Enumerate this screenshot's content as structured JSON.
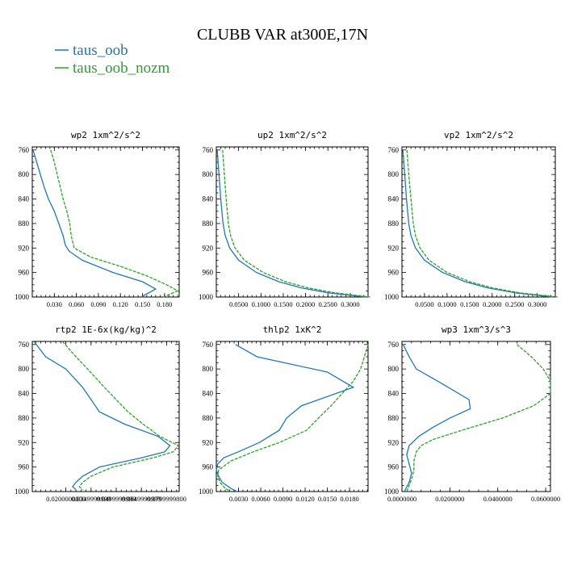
{
  "title": "CLUBB VAR at300E,17N",
  "legend": [
    {
      "name": "taus_oob",
      "color": "#1f77b4"
    },
    {
      "name": "taus_oob_nozm",
      "color": "#2ca02c"
    }
  ],
  "chart_data": [
    {
      "type": "line",
      "title": "wp2  1xm^2/s^2",
      "xlim": [
        0.0,
        0.2
      ],
      "ylim": [
        1000,
        755
      ],
      "xticks": [
        0.03,
        0.06,
        0.09,
        0.12,
        0.15,
        0.18
      ],
      "xticklabels": [
        "0.030",
        "0.060",
        "0.090",
        "0.120",
        "0.150",
        "0.180"
      ],
      "yticks": [
        760,
        800,
        840,
        880,
        920,
        960,
        1000
      ],
      "series": [
        {
          "name": "taus_oob",
          "y": [
            760,
            780,
            800,
            820,
            840,
            860,
            880,
            900,
            915,
            925,
            940,
            960,
            975,
            987,
            1000
          ],
          "x": [
            0.001,
            0.006,
            0.011,
            0.016,
            0.022,
            0.03,
            0.036,
            0.042,
            0.045,
            0.05,
            0.068,
            0.11,
            0.15,
            0.168,
            0.148
          ]
        },
        {
          "name": "taus_oob_nozm",
          "y": [
            760,
            780,
            800,
            820,
            840,
            860,
            880,
            900,
            920,
            935,
            950,
            965,
            980,
            990,
            1000
          ],
          "x": [
            0.025,
            0.03,
            0.034,
            0.038,
            0.042,
            0.047,
            0.051,
            0.053,
            0.057,
            0.08,
            0.12,
            0.155,
            0.183,
            0.198,
            0.178
          ]
        }
      ]
    },
    {
      "type": "line",
      "title": "up2  1xm^2/s^2",
      "xlim": [
        0.0,
        0.34
      ],
      "ylim": [
        1000,
        755
      ],
      "xticks": [
        0.05,
        0.1,
        0.15,
        0.2,
        0.25,
        0.3
      ],
      "xticklabels": [
        "0.0500",
        "0.1000",
        "0.1500",
        "0.2000",
        "0.2500",
        "0.3000"
      ],
      "yticks": [
        760,
        800,
        840,
        880,
        920,
        960,
        1000
      ],
      "series": [
        {
          "name": "taus_oob",
          "y": [
            760,
            800,
            840,
            880,
            900,
            920,
            940,
            960,
            975,
            985,
            993,
            1000
          ],
          "x": [
            0.002,
            0.006,
            0.01,
            0.015,
            0.02,
            0.03,
            0.05,
            0.09,
            0.14,
            0.19,
            0.25,
            0.335
          ]
        },
        {
          "name": "taus_oob_nozm",
          "y": [
            760,
            800,
            840,
            880,
            900,
            920,
            940,
            960,
            975,
            985,
            993,
            1000
          ],
          "x": [
            0.014,
            0.018,
            0.022,
            0.027,
            0.032,
            0.042,
            0.063,
            0.105,
            0.155,
            0.205,
            0.265,
            0.345
          ]
        }
      ]
    },
    {
      "type": "line",
      "title": "vp2  1xm^2/s^2",
      "xlim": [
        0.0,
        0.34
      ],
      "ylim": [
        1000,
        755
      ],
      "xticks": [
        0.05,
        0.1,
        0.15,
        0.2,
        0.25,
        0.3
      ],
      "xticklabels": [
        "0.0500",
        "0.1000",
        "0.1500",
        "0.2000",
        "0.2500",
        "0.3000"
      ],
      "yticks": [
        760,
        800,
        840,
        880,
        920,
        960,
        1000
      ],
      "series": [
        {
          "name": "taus_oob",
          "y": [
            760,
            800,
            840,
            880,
            900,
            920,
            940,
            960,
            975,
            985,
            993,
            1000
          ],
          "x": [
            0.002,
            0.006,
            0.01,
            0.015,
            0.02,
            0.03,
            0.05,
            0.09,
            0.14,
            0.19,
            0.25,
            0.335
          ]
        },
        {
          "name": "taus_oob_nozm",
          "y": [
            760,
            800,
            840,
            880,
            900,
            920,
            940,
            960,
            975,
            985,
            993,
            1000
          ],
          "x": [
            0.011,
            0.015,
            0.02,
            0.025,
            0.03,
            0.04,
            0.06,
            0.1,
            0.15,
            0.2,
            0.26,
            0.345
          ]
        }
      ]
    },
    {
      "type": "line",
      "title": "rtp2  1E-6x(kg/kg)^2",
      "xlim": [
        0.0,
        0.0875
      ],
      "ylim": [
        1000,
        755
      ],
      "xticks": [
        0.02,
        0.035,
        0.05,
        0.065,
        0.08
      ],
      "xticklabels": [
        "0.0200000000",
        "0.0349999999",
        "0.0499999999",
        "0.0649999999",
        "0.0799999800"
      ],
      "yticks": [
        760,
        800,
        840,
        880,
        920,
        960,
        1000
      ],
      "series": [
        {
          "name": "taus_oob",
          "y": [
            755,
            780,
            800,
            830,
            850,
            870,
            890,
            910,
            925,
            935,
            945,
            960,
            975,
            985,
            992,
            997
          ],
          "x": [
            0.001,
            0.008,
            0.02,
            0.03,
            0.035,
            0.04,
            0.055,
            0.075,
            0.082,
            0.079,
            0.065,
            0.04,
            0.03,
            0.026,
            0.024,
            0.026
          ]
        },
        {
          "name": "taus_oob_nozm",
          "y": [
            755,
            780,
            800,
            830,
            850,
            870,
            890,
            910,
            925,
            935,
            945,
            960,
            975,
            985,
            992,
            997
          ],
          "x": [
            0.018,
            0.026,
            0.033,
            0.043,
            0.05,
            0.057,
            0.066,
            0.076,
            0.087,
            0.084,
            0.072,
            0.048,
            0.035,
            0.03,
            0.028,
            0.03
          ]
        }
      ]
    },
    {
      "type": "line",
      "title": "thlp2  1xK^2",
      "xlim": [
        0.0,
        0.0205
      ],
      "ylim": [
        1000,
        755
      ],
      "xticks": [
        0.003,
        0.006,
        0.009,
        0.012,
        0.015,
        0.018
      ],
      "xticklabels": [
        "0.0030",
        "0.0060",
        "0.0090",
        "0.0120",
        "0.0150",
        "0.0180"
      ],
      "yticks": [
        760,
        800,
        840,
        880,
        920,
        960,
        1000
      ],
      "series": [
        {
          "name": "taus_oob",
          "y": [
            760,
            780,
            805,
            830,
            860,
            880,
            900,
            920,
            935,
            945,
            955,
            965,
            975,
            985,
            995,
            1000
          ],
          "x": [
            0.0026,
            0.0055,
            0.015,
            0.0185,
            0.0115,
            0.0095,
            0.0085,
            0.0058,
            0.003,
            0.001,
            0.0002,
            0.0,
            0.0003,
            0.0008,
            0.002,
            0.0028
          ]
        },
        {
          "name": "taus_oob_nozm",
          "y": [
            760,
            780,
            800,
            820,
            840,
            860,
            880,
            900,
            920,
            935,
            950,
            965,
            975,
            985,
            995,
            1000
          ],
          "x": [
            0.0205,
            0.02,
            0.0195,
            0.0185,
            0.017,
            0.0155,
            0.0138,
            0.0122,
            0.0085,
            0.005,
            0.002,
            0.0003,
            0.0002,
            0.0005,
            0.0012,
            0.002
          ]
        }
      ]
    },
    {
      "type": "line",
      "title": "wp3  1xm^3/s^3",
      "xlim": [
        0.0,
        0.062
      ],
      "ylim": [
        1000,
        755
      ],
      "xticks": [
        0.0,
        0.02,
        0.04,
        0.06
      ],
      "xticklabels": [
        "0.0000000",
        "0.0200000",
        "0.0400000",
        "0.0600000"
      ],
      "yticks": [
        760,
        800,
        840,
        880,
        920,
        960,
        1000
      ],
      "series": [
        {
          "name": "taus_oob",
          "y": [
            760,
            780,
            800,
            820,
            850,
            865,
            880,
            895,
            910,
            925,
            940,
            955,
            970,
            985,
            1000
          ],
          "x": [
            0.0005,
            0.003,
            0.006,
            0.015,
            0.028,
            0.0285,
            0.02,
            0.013,
            0.007,
            0.003,
            0.002,
            0.003,
            0.004,
            0.003,
            0.001
          ]
        },
        {
          "name": "taus_oob_nozm",
          "y": [
            760,
            780,
            800,
            820,
            840,
            860,
            880,
            900,
            915,
            925,
            935,
            950,
            965,
            980,
            1000
          ],
          "x": [
            0.048,
            0.054,
            0.059,
            0.062,
            0.062,
            0.055,
            0.042,
            0.025,
            0.013,
            0.008,
            0.006,
            0.005,
            0.005,
            0.004,
            0.002
          ]
        }
      ]
    }
  ]
}
